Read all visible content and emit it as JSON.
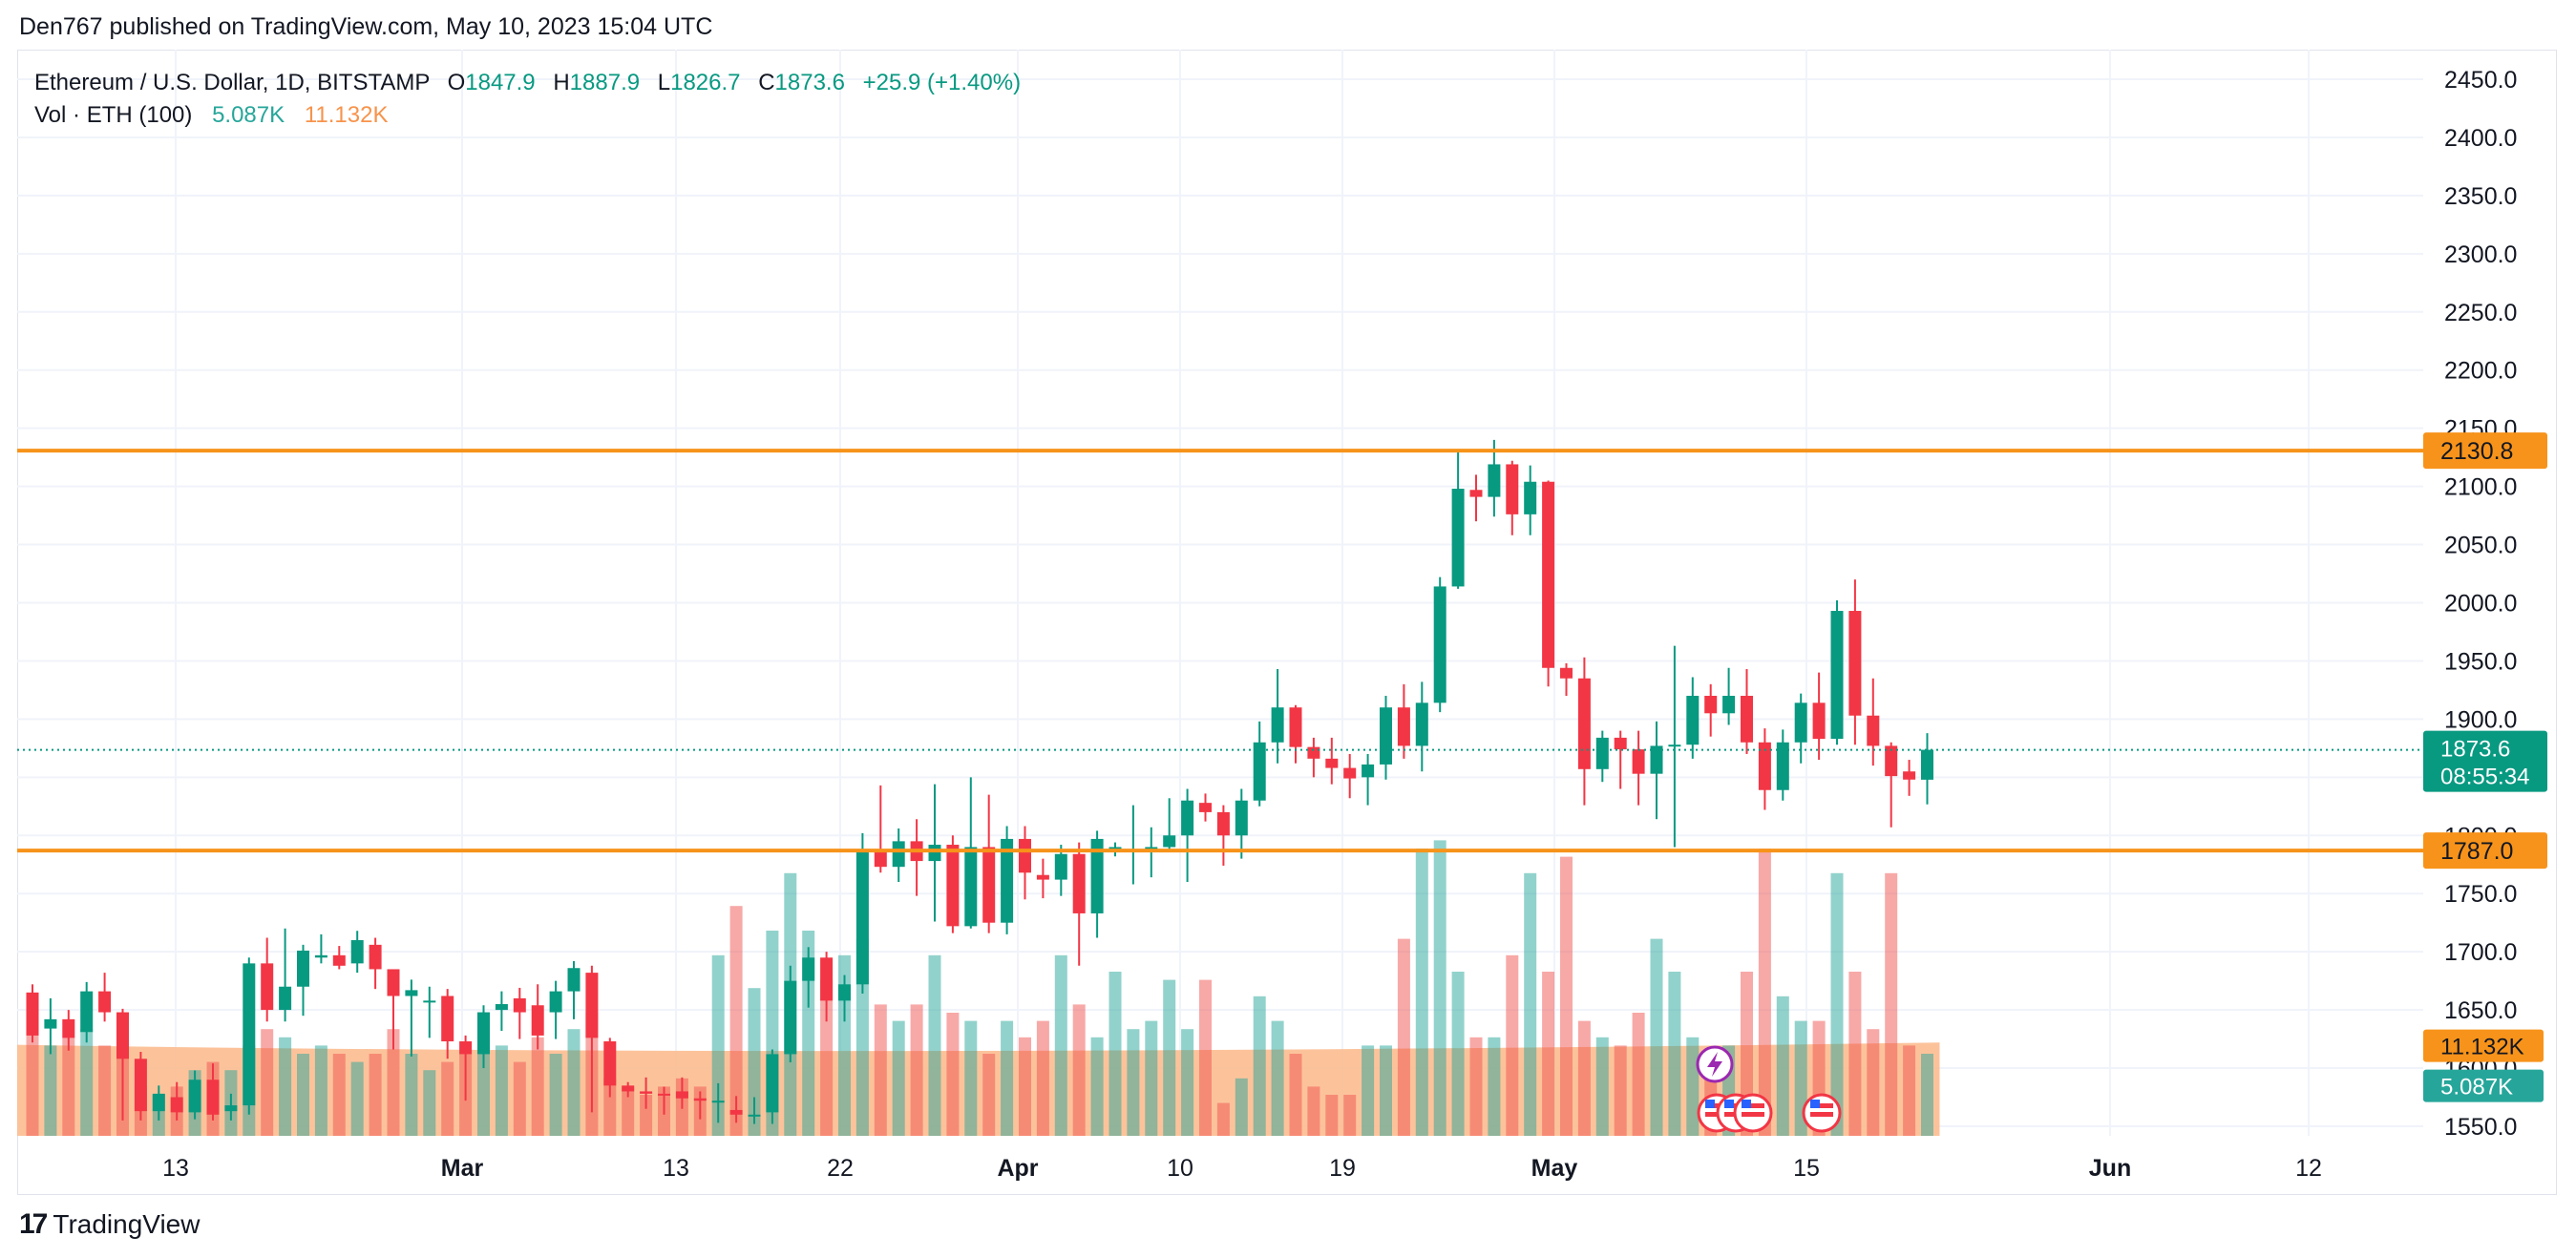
{
  "attribution": "Den767 published on TradingView.com, May 10, 2023 15:04 UTC",
  "brand": {
    "logo": "17",
    "name": "TradingView"
  },
  "legend": {
    "symbol": "Ethereum / U.S. Dollar, 1D, BITSTAMP",
    "o_label": "O",
    "o": "1847.9",
    "h_label": "H",
    "h": "1887.9",
    "l_label": "L",
    "l": "1826.7",
    "c_label": "C",
    "c": "1873.6",
    "change": "+25.9 (+1.40%)",
    "vol_label": "Vol · ETH (100)",
    "vol_value": "5.087K",
    "vol_ma": "11.132K"
  },
  "colors": {
    "up": "#089981",
    "down": "#f23645",
    "vol_up": "#26a69a",
    "vol_down": "#ef5350",
    "vol_ma_fill": "#fbb98a",
    "level_line": "#f7931a",
    "grid": "#f0f3fa",
    "axis_text": "#131722"
  },
  "chart_data": {
    "type": "candlestick",
    "y_axis": {
      "ticks": [
        "2450.0",
        "2400.0",
        "2350.0",
        "2300.0",
        "2250.0",
        "2200.0",
        "2150.0",
        "2100.0",
        "2050.0",
        "2000.0",
        "1950.0",
        "1900.0",
        "1850.0",
        "1800.0",
        "1750.0",
        "1700.0",
        "1650.0",
        "1600.0",
        "1550.0"
      ],
      "ylim": [
        1550,
        2450
      ]
    },
    "x_axis": {
      "ticks": [
        "13",
        "Mar",
        "13",
        "22",
        "Apr",
        "10",
        "19",
        "May",
        "15",
        "Jun",
        "12"
      ]
    },
    "levels": [
      {
        "name": "resistance",
        "price": 2130.8,
        "label": "2130.8"
      },
      {
        "name": "support",
        "price": 1787.0,
        "label": "1787.0"
      }
    ],
    "current": {
      "price": 1873.6,
      "label": "1873.6",
      "countdown": "08:55:34"
    },
    "volume_labels": {
      "ma": "11.132K",
      "current": "5.087K"
    },
    "candles": [
      [
        1665,
        1628,
        1672,
        1622
      ],
      [
        1634,
        1642,
        1660,
        1612
      ],
      [
        1642,
        1626,
        1650,
        1615
      ],
      [
        1631,
        1666,
        1674,
        1622
      ],
      [
        1666,
        1648,
        1682,
        1640
      ],
      [
        1648,
        1608,
        1651,
        1555
      ],
      [
        1608,
        1563,
        1614,
        1555
      ],
      [
        1563,
        1578,
        1585,
        1555
      ],
      [
        1575,
        1562,
        1588,
        1555
      ],
      [
        1562,
        1590,
        1598,
        1556
      ],
      [
        1590,
        1560,
        1604,
        1555
      ],
      [
        1563,
        1568,
        1578,
        1555
      ],
      [
        1568,
        1690,
        1695,
        1560
      ],
      [
        1690,
        1650,
        1712,
        1640
      ],
      [
        1650,
        1670,
        1720,
        1640
      ],
      [
        1670,
        1701,
        1706,
        1645
      ],
      [
        1695,
        1697,
        1715,
        1690
      ],
      [
        1697,
        1688,
        1705,
        1685
      ],
      [
        1690,
        1710,
        1718,
        1682
      ],
      [
        1706,
        1685,
        1712,
        1668
      ],
      [
        1685,
        1662,
        1670,
        1616
      ],
      [
        1662,
        1667,
        1676,
        1610
      ],
      [
        1658,
        1658,
        1670,
        1626
      ],
      [
        1662,
        1623,
        1668,
        1608
      ],
      [
        1623,
        1612,
        1628,
        1572
      ],
      [
        1612,
        1648,
        1654,
        1600
      ],
      [
        1650,
        1655,
        1666,
        1632
      ],
      [
        1660,
        1648,
        1669,
        1625
      ],
      [
        1654,
        1628,
        1672,
        1616
      ],
      [
        1648,
        1666,
        1675,
        1625
      ],
      [
        1666,
        1686,
        1692,
        1642
      ],
      [
        1682,
        1626,
        1688,
        1562
      ],
      [
        1623,
        1585,
        1626,
        1575
      ],
      [
        1585,
        1580,
        1588,
        1575
      ],
      [
        1580,
        1578,
        1592,
        1565
      ],
      [
        1578,
        1577,
        1584,
        1560
      ],
      [
        1580,
        1574,
        1592,
        1565
      ],
      [
        1574,
        1572,
        1580,
        1556
      ],
      [
        1572,
        1572,
        1587,
        1553
      ],
      [
        1564,
        1560,
        1576,
        1553
      ],
      [
        1560,
        1560,
        1575,
        1552
      ],
      [
        1562,
        1612,
        1616,
        1552
      ],
      [
        1612,
        1675,
        1688,
        1605
      ],
      [
        1675,
        1695,
        1704,
        1652
      ],
      [
        1695,
        1658,
        1700,
        1640
      ],
      [
        1658,
        1672,
        1680,
        1640
      ],
      [
        1672,
        1788,
        1802,
        1664
      ],
      [
        1788,
        1773,
        1843,
        1768
      ],
      [
        1773,
        1795,
        1806,
        1760
      ],
      [
        1795,
        1778,
        1814,
        1748
      ],
      [
        1778,
        1792,
        1844,
        1726
      ],
      [
        1792,
        1722,
        1800,
        1716
      ],
      [
        1722,
        1790,
        1850,
        1720
      ],
      [
        1790,
        1725,
        1835,
        1716
      ],
      [
        1725,
        1797,
        1808,
        1715
      ],
      [
        1797,
        1768,
        1808,
        1745
      ],
      [
        1766,
        1762,
        1780,
        1746
      ],
      [
        1762,
        1784,
        1792,
        1748
      ],
      [
        1784,
        1733,
        1794,
        1688
      ],
      [
        1733,
        1797,
        1804,
        1712
      ],
      [
        1790,
        1790,
        1794,
        1782
      ],
      [
        1788,
        1788,
        1826,
        1758
      ],
      [
        1788,
        1790,
        1807,
        1764
      ],
      [
        1790,
        1800,
        1832,
        1788
      ],
      [
        1800,
        1830,
        1840,
        1760
      ],
      [
        1828,
        1820,
        1836,
        1812
      ],
      [
        1820,
        1800,
        1826,
        1774
      ],
      [
        1800,
        1830,
        1840,
        1780
      ],
      [
        1830,
        1880,
        1898,
        1825
      ],
      [
        1880,
        1910,
        1943,
        1862
      ],
      [
        1910,
        1876,
        1912,
        1862
      ],
      [
        1876,
        1866,
        1884,
        1850
      ],
      [
        1866,
        1858,
        1884,
        1844
      ],
      [
        1858,
        1849,
        1870,
        1832
      ],
      [
        1850,
        1861,
        1870,
        1826
      ],
      [
        1861,
        1910,
        1920,
        1848
      ],
      [
        1910,
        1877,
        1930,
        1866
      ],
      [
        1877,
        1914,
        1932,
        1855
      ],
      [
        1914,
        2014,
        2022,
        1906
      ],
      [
        2014,
        2098,
        2131,
        2012
      ],
      [
        2097,
        2091,
        2110,
        2070
      ],
      [
        2091,
        2119,
        2140,
        2074
      ],
      [
        2119,
        2076,
        2122,
        2058
      ],
      [
        2076,
        2104,
        2118,
        2058
      ],
      [
        2104,
        1944,
        2105,
        1928
      ],
      [
        1944,
        1935,
        1948,
        1920
      ],
      [
        1935,
        1857,
        1953,
        1826
      ],
      [
        1857,
        1884,
        1890,
        1846
      ],
      [
        1884,
        1874,
        1890,
        1840
      ],
      [
        1874,
        1853,
        1890,
        1826
      ],
      [
        1853,
        1877,
        1898,
        1814
      ],
      [
        1877,
        1878,
        1963,
        1790
      ],
      [
        1878,
        1920,
        1936,
        1866
      ],
      [
        1920,
        1905,
        1930,
        1885
      ],
      [
        1905,
        1920,
        1944,
        1895
      ],
      [
        1920,
        1880,
        1943,
        1870
      ],
      [
        1880,
        1839,
        1892,
        1822
      ],
      [
        1839,
        1880,
        1891,
        1830
      ],
      [
        1880,
        1914,
        1922,
        1862
      ],
      [
        1914,
        1883,
        1940,
        1865
      ],
      [
        1883,
        1993,
        2002,
        1878
      ],
      [
        1993,
        1903,
        2020,
        1878
      ],
      [
        1903,
        1877,
        1935,
        1860
      ],
      [
        1877,
        1851,
        1880,
        1807
      ],
      [
        1855,
        1848,
        1865,
        1834
      ],
      [
        1847.9,
        1873.6,
        1887.9,
        1826.7
      ]
    ],
    "volume_ma_start": 1620,
    "volume_ma_end": 1622,
    "volume_heights": [
      0.28,
      0.22,
      0.24,
      0.26,
      0.22,
      0.3,
      0.12,
      0.1,
      0.12,
      0.16,
      0.18,
      0.16,
      0.22,
      0.26,
      0.24,
      0.2,
      0.22,
      0.2,
      0.18,
      0.2,
      0.26,
      0.2,
      0.16,
      0.18,
      0.2,
      0.22,
      0.22,
      0.18,
      0.24,
      0.2,
      0.26,
      0.3,
      0.14,
      0.12,
      0.1,
      0.12,
      0.14,
      0.12,
      0.44,
      0.56,
      0.36,
      0.5,
      0.64,
      0.5,
      0.38,
      0.44,
      0.48,
      0.32,
      0.28,
      0.32,
      0.44,
      0.3,
      0.28,
      0.2,
      0.28,
      0.24,
      0.28,
      0.44,
      0.32,
      0.24,
      0.4,
      0.26,
      0.28,
      0.38,
      0.26,
      0.38,
      0.08,
      0.14,
      0.34,
      0.28,
      0.2,
      0.12,
      0.1,
      0.1,
      0.22,
      0.22,
      0.48,
      0.7,
      0.72,
      0.4,
      0.24,
      0.24,
      0.44,
      0.64,
      0.4,
      0.68,
      0.28,
      0.24,
      0.22,
      0.3,
      0.48,
      0.4,
      0.24,
      0.2,
      0.22,
      0.4,
      0.7,
      0.34,
      0.28,
      0.28,
      0.64,
      0.4,
      0.26,
      0.64,
      0.22,
      0.2
    ]
  }
}
